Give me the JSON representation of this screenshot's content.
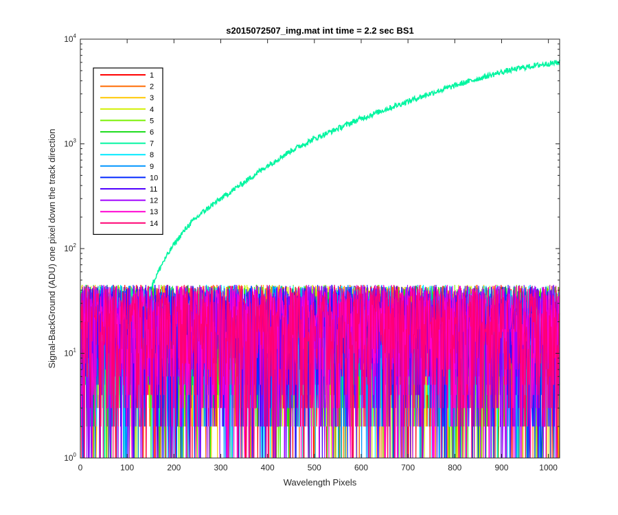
{
  "chart_data": {
    "type": "line",
    "title": "s2015072507_img.mat int time = 2.2 sec   BS1",
    "xlabel": "Wavelength Pixels",
    "ylabel": "Signal-BackGround (ADU) one pixel down the track direction",
    "xlim": [
      0,
      1024
    ],
    "ylim": [
      1,
      10000
    ],
    "yscale": "log",
    "x_ticks": [
      0,
      100,
      200,
      300,
      400,
      500,
      600,
      700,
      800,
      900,
      1000
    ],
    "x_tick_labels": [
      "0",
      "100",
      "200",
      "300",
      "400",
      "500",
      "600",
      "700",
      "800",
      "900",
      "1000"
    ],
    "y_ticks": [
      1,
      10,
      100,
      1000,
      10000
    ],
    "y_tick_labels": [
      {
        "base": "10",
        "exp": "0"
      },
      {
        "base": "10",
        "exp": "1"
      },
      {
        "base": "10",
        "exp": "2"
      },
      {
        "base": "10",
        "exp": "3"
      },
      {
        "base": "10",
        "exp": "4"
      }
    ],
    "grid": false,
    "legend_position": "top-left",
    "series": [
      {
        "name": "1",
        "color": "#ff0000",
        "noise_range": [
          1,
          45
        ]
      },
      {
        "name": "2",
        "color": "#ff6a00",
        "noise_range": [
          1,
          45
        ]
      },
      {
        "name": "3",
        "color": "#ffc800",
        "noise_range": [
          1,
          45
        ]
      },
      {
        "name": "4",
        "color": "#d2f000",
        "noise_range": [
          1,
          45
        ]
      },
      {
        "name": "5",
        "color": "#78f000",
        "noise_range": [
          1,
          45
        ]
      },
      {
        "name": "6",
        "color": "#1edc1e",
        "noise_range": [
          1,
          45
        ]
      },
      {
        "name": "7",
        "color": "#00f5a0",
        "curve": {
          "x": [
            120,
            150,
            175,
            200,
            230,
            260,
            300,
            350,
            400,
            450,
            500,
            550,
            600,
            650,
            700,
            750,
            800,
            850,
            900,
            950,
            1000,
            1024
          ],
          "y": [
            25,
            42,
            72,
            110,
            165,
            220,
            300,
            430,
            620,
            860,
            1120,
            1400,
            1750,
            2120,
            2550,
            3050,
            3600,
            4200,
            4850,
            5400,
            5850,
            6000
          ]
        },
        "noise_range": [
          1,
          45
        ]
      },
      {
        "name": "8",
        "color": "#00eaff",
        "noise_range": [
          1,
          45
        ]
      },
      {
        "name": "9",
        "color": "#0095ff",
        "noise_range": [
          1,
          45
        ]
      },
      {
        "name": "10",
        "color": "#0026ff",
        "noise_range": [
          1,
          45
        ]
      },
      {
        "name": "11",
        "color": "#5000ff",
        "noise_range": [
          1,
          45
        ]
      },
      {
        "name": "12",
        "color": "#a000ff",
        "noise_range": [
          1,
          45
        ]
      },
      {
        "name": "13",
        "color": "#ff00d2",
        "noise_range": [
          1,
          45
        ]
      },
      {
        "name": "14",
        "color": "#ff0073",
        "noise_range": [
          1,
          45
        ]
      }
    ]
  }
}
